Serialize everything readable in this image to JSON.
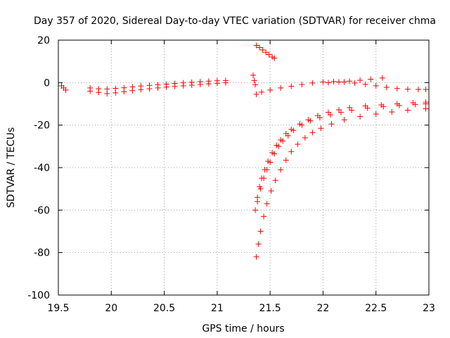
{
  "chart_data": {
    "type": "scatter",
    "title": "Day 357 of 2020, Sidereal Day-to-day VTEC variation (SDTVAR) for receiver chma",
    "xlabel": "GPS time / hours",
    "ylabel": "SDTVAR / TECUs",
    "xlim": [
      19.5,
      23
    ],
    "ylim": [
      -100,
      20
    ],
    "xticks": [
      19.5,
      20,
      20.5,
      21,
      21.5,
      22,
      22.5,
      23
    ],
    "xtick_labels": [
      "19.5",
      "20",
      "20.5",
      "21",
      "21.5",
      "22",
      "22.5",
      "23"
    ],
    "yticks": [
      -100,
      -80,
      -60,
      -40,
      -20,
      0,
      20
    ],
    "ytick_labels": [
      "-100",
      "-80",
      "-60",
      "-40",
      "-20",
      "0",
      "20"
    ],
    "grid": true,
    "marker": "+",
    "color": "#ff0000",
    "series": [
      {
        "name": "s1",
        "x": [
          19.53,
          19.55,
          19.57
        ],
        "y": [
          -1.5,
          -2.5,
          -3.5
        ]
      },
      {
        "name": "s2",
        "x": [
          19.8,
          19.88,
          19.96,
          20.04,
          20.12,
          20.2,
          20.28,
          20.36,
          20.44,
          20.52,
          20.6,
          20.68,
          20.76,
          20.84,
          20.92,
          21.0,
          21.08
        ],
        "y": [
          -2.5,
          -2.9,
          -3.0,
          -2.7,
          -2.4,
          -2.0,
          -1.6,
          -1.3,
          -1.0,
          -0.7,
          -0.4,
          -0.1,
          0.2,
          0.5,
          0.7,
          0.9,
          1.0
        ]
      },
      {
        "name": "s3",
        "x": [
          19.8,
          19.88,
          19.96,
          20.04,
          20.12,
          20.2,
          20.28,
          20.36,
          20.44,
          20.52,
          20.6,
          20.68,
          20.76,
          20.84,
          20.92,
          21.0,
          21.08
        ],
        "y": [
          -4.0,
          -4.6,
          -5.2,
          -4.8,
          -4.3,
          -3.8,
          -3.3,
          -2.9,
          -2.5,
          -2.1,
          -1.8,
          -1.5,
          -1.2,
          -0.9,
          -0.6,
          -0.3,
          -0.1
        ]
      },
      {
        "name": "s4",
        "x": [
          21.34,
          21.35,
          21.36
        ],
        "y": [
          3.5,
          1.0,
          -1.0
        ]
      },
      {
        "name": "s5",
        "x": [
          21.37,
          21.4,
          21.43,
          21.46,
          21.49,
          21.52,
          21.54
        ],
        "y": [
          17.5,
          16.5,
          15.4,
          14.3,
          13.2,
          12.1,
          11.5
        ]
      },
      {
        "name": "s6",
        "x": [
          21.37,
          21.42,
          21.5,
          21.6,
          21.7,
          21.8,
          21.9,
          22.0,
          22.1,
          22.2,
          22.3,
          22.4,
          22.5,
          22.6,
          22.7,
          22.8,
          22.9,
          22.97
        ],
        "y": [
          -5.5,
          -4.5,
          -3.5,
          -2.5,
          -1.7,
          -0.9,
          -0.2,
          0.3,
          0.5,
          0.3,
          -0.2,
          -0.8,
          -1.5,
          -2.2,
          -2.8,
          -3.1,
          -3.2,
          -3.2
        ]
      },
      {
        "name": "s7",
        "x": [
          22.05,
          22.15,
          22.25,
          22.35,
          22.45,
          22.56
        ],
        "y": [
          0.0,
          0.3,
          0.7,
          1.1,
          1.6,
          2.2
        ]
      },
      {
        "name": "s8",
        "x": [
          21.36,
          21.38,
          21.4,
          21.42,
          21.45,
          21.48,
          21.52,
          21.56,
          21.6,
          21.65,
          21.7,
          21.78,
          21.86,
          21.95,
          22.05,
          22.15,
          22.25,
          22.4,
          22.55,
          22.7,
          22.85,
          22.97
        ],
        "y": [
          -60,
          -54,
          -49,
          -45,
          -41,
          -37,
          -33,
          -29.5,
          -27,
          -24,
          -22,
          -19.5,
          -17.5,
          -15.5,
          -14,
          -12.8,
          -11.8,
          -11,
          -10.5,
          -10,
          -9.5,
          -9.2
        ]
      },
      {
        "name": "s9",
        "x": [
          21.38,
          21.41,
          21.44,
          21.47,
          21.5,
          21.54,
          21.58,
          21.62,
          21.67,
          21.72,
          21.8,
          21.88,
          21.97,
          22.07,
          22.17,
          22.27,
          22.42,
          22.57,
          22.72,
          22.87,
          22.97
        ],
        "y": [
          -56,
          -50,
          -45,
          -41,
          -37.5,
          -33.5,
          -30,
          -27.5,
          -25,
          -22.5,
          -20,
          -18,
          -16.5,
          -15.2,
          -14,
          -13,
          -12,
          -11.3,
          -10.8,
          -10.3,
          -10
        ]
      },
      {
        "name": "s10",
        "x": [
          21.37,
          21.39,
          21.41,
          21.44,
          21.47,
          21.51,
          21.55,
          21.6,
          21.65,
          21.7,
          21.76,
          21.83,
          21.9,
          21.98,
          22.08,
          22.2,
          22.35,
          22.5,
          22.65,
          22.8,
          22.97
        ],
        "y": [
          -82,
          -76,
          -70,
          -63,
          -57,
          -51,
          -46,
          -41,
          -36.5,
          -32.5,
          -29,
          -26,
          -23.5,
          -21.5,
          -19.5,
          -17.5,
          -16,
          -14.8,
          -13.8,
          -13,
          -12.3
        ]
      }
    ]
  }
}
